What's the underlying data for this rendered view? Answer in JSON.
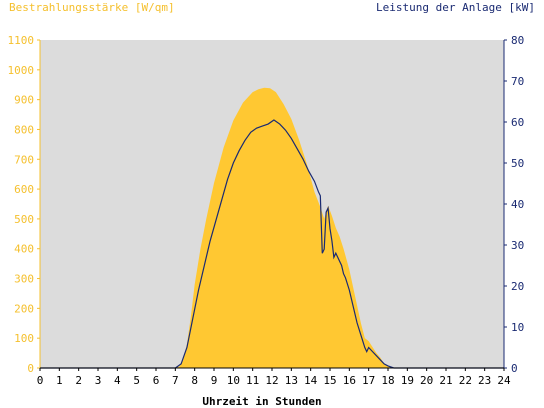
{
  "chart_data": {
    "type": "area",
    "title_left": "Bestrahlungsstärke [W/qm]",
    "title_right": "Leistung der Anlage [kW]",
    "xlabel": "Uhrzeit in Stunden",
    "xlim": [
      0,
      24
    ],
    "x_ticks": [
      "0",
      "1",
      "2",
      "3",
      "4",
      "5",
      "6",
      "7",
      "8",
      "9",
      "10",
      "11",
      "12",
      "13",
      "14",
      "15",
      "16",
      "17",
      "18",
      "19",
      "20",
      "21",
      "22",
      "23",
      "24"
    ],
    "y_left": {
      "lim": [
        0,
        1100
      ],
      "ticks": [
        "0",
        "100",
        "200",
        "300",
        "400",
        "500",
        "600",
        "700",
        "800",
        "900",
        "1000",
        "1100"
      ],
      "color": "#f5c02e"
    },
    "y_right": {
      "lim": [
        0,
        80
      ],
      "ticks": [
        "0",
        "10",
        "20",
        "30",
        "40",
        "50",
        "60",
        "70",
        "80"
      ],
      "color": "#1a2a72"
    },
    "plot_background": "#dcdcdc",
    "series": [
      {
        "axis": "left",
        "style": "area",
        "color": "#ffc832",
        "x": [
          0,
          7.0,
          7.2,
          7.4,
          7.6,
          7.8,
          8.0,
          8.3,
          8.6,
          9.0,
          9.5,
          10.0,
          10.5,
          11.0,
          11.3,
          11.6,
          11.9,
          12.2,
          12.6,
          13.0,
          13.4,
          13.8,
          14.2,
          14.5,
          14.7,
          14.9,
          15.1,
          15.3,
          15.5,
          15.7,
          16.0,
          16.3,
          16.6,
          16.8,
          17.0,
          17.2,
          17.4,
          17.6,
          17.8,
          18.0,
          18.3,
          24
        ],
        "y": [
          0,
          0,
          5,
          25,
          80,
          170,
          280,
          400,
          500,
          620,
          740,
          830,
          890,
          925,
          935,
          940,
          938,
          925,
          885,
          835,
          765,
          685,
          590,
          540,
          500,
          545,
          510,
          470,
          440,
          400,
          330,
          240,
          150,
          100,
          90,
          70,
          50,
          35,
          15,
          5,
          0,
          0
        ]
      },
      {
        "axis": "right",
        "style": "line",
        "color": "#1a2a72",
        "x": [
          0,
          7.0,
          7.3,
          7.6,
          7.9,
          8.2,
          8.5,
          8.8,
          9.1,
          9.4,
          9.7,
          10.0,
          10.3,
          10.6,
          10.9,
          11.2,
          11.5,
          11.8,
          12.1,
          12.4,
          12.7,
          13.0,
          13.3,
          13.6,
          13.9,
          14.2,
          14.4,
          14.5,
          14.6,
          14.7,
          14.8,
          14.9,
          15.0,
          15.1,
          15.2,
          15.3,
          15.4,
          15.5,
          15.6,
          15.7,
          15.8,
          16.0,
          16.2,
          16.4,
          16.6,
          16.8,
          16.9,
          17.0,
          17.2,
          17.4,
          17.6,
          17.8,
          18.0,
          18.3,
          24
        ],
        "y": [
          0,
          0,
          1,
          5,
          12,
          19,
          25,
          31,
          36,
          41,
          46,
          50,
          53,
          55.5,
          57.5,
          58.5,
          59,
          59.5,
          60.5,
          59.5,
          58,
          56,
          53.5,
          51,
          48,
          45.5,
          43,
          42,
          28,
          29,
          38,
          39,
          34,
          31,
          27,
          28,
          27,
          26,
          25,
          23,
          22,
          19,
          15,
          11,
          8,
          5,
          4,
          5,
          4,
          3,
          2,
          1,
          0.5,
          0,
          0
        ]
      }
    ]
  }
}
